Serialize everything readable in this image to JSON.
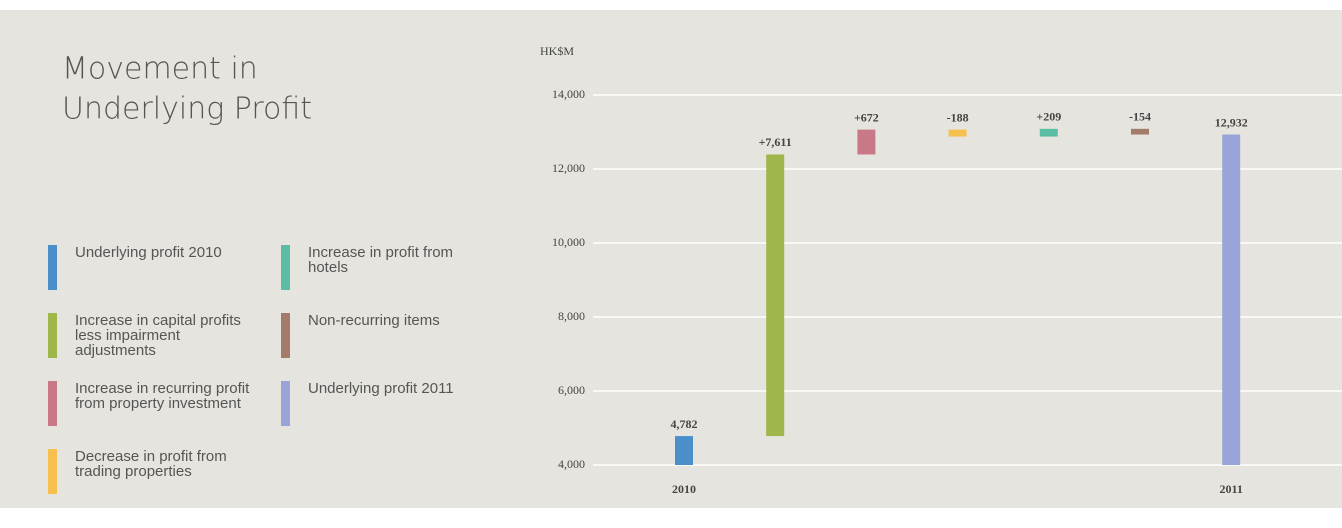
{
  "chart_data": {
    "type": "waterfall",
    "title": [
      "Movement in",
      "Underlying Profit"
    ],
    "unit_label": "HK$M",
    "categories": [
      "2010",
      null,
      null,
      null,
      null,
      null,
      "2011"
    ],
    "legend": [
      "Underlying profit 2010",
      "Increase in capital profits less impairment adjustments",
      "Increase in recurring profit from property investment",
      "Decrease in profit from trading properties",
      "Increase in profit from hotels",
      "Non-recurring items",
      "Underlying profit 2011"
    ],
    "colors": [
      "#4a8fc9",
      "#9fb64a",
      "#c97888",
      "#f6c04f",
      "#5bbea4",
      "#a37b6b",
      "#99a5d8"
    ],
    "values": [
      4782,
      7611,
      672,
      -188,
      209,
      -154,
      12932
    ],
    "value_labels": [
      "4,782",
      "+7,611",
      "+672",
      "-188",
      "+209",
      "-154",
      "12,932"
    ],
    "ylim": [
      4000,
      14000
    ],
    "yticks": [
      {
        "value": 4000,
        "label": "4,000"
      },
      {
        "value": 6000,
        "label": "6,000"
      },
      {
        "value": 8000,
        "label": "8,000"
      },
      {
        "value": 10000,
        "label": "10,000"
      },
      {
        "value": 12000,
        "label": "12,000"
      },
      {
        "value": 14000,
        "label": "14,000"
      }
    ],
    "grid": true
  }
}
